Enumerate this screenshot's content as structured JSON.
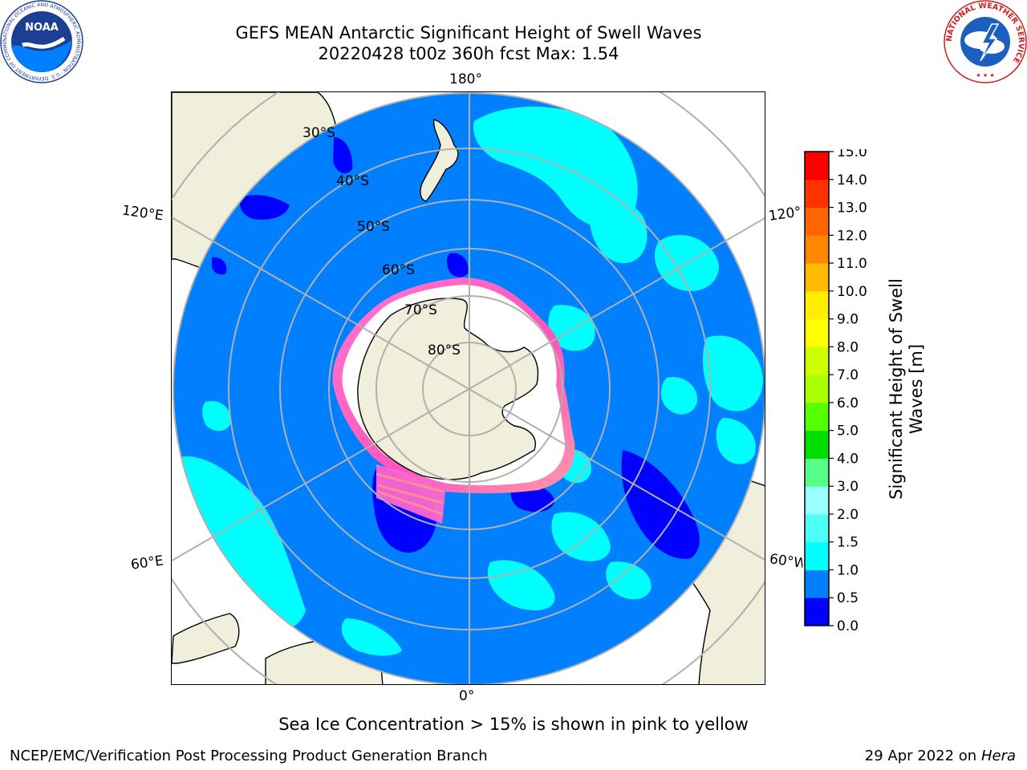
{
  "title_line1": "GEFS MEAN Antarctic Significant Height of Swell Waves",
  "title_line2": "20220428 t00z 360h fcst   Max: 1.54",
  "logos": {
    "noaa": {
      "icon": "noaa-logo",
      "text": "NOAA",
      "ring_text": "NATIONAL OCEANIC AND ATMOSPHERIC ADMINISTRATION · U.S. DEPARTMENT OF COMMERCE"
    },
    "nws": {
      "icon": "national-weather-service-logo",
      "ring_text": "NATIONAL WEATHER SERVICE"
    }
  },
  "map": {
    "projection": "south-polar-stereographic",
    "lon_labels": {
      "top": "180°",
      "bottom": "0°",
      "upper_left": "120°E",
      "upper_right": "120°W",
      "lower_left": "60°E",
      "lower_right": "60°W"
    },
    "lat_labels": [
      "30°S",
      "40°S",
      "50°S",
      "60°S",
      "70°S",
      "80°S"
    ],
    "colors": {
      "ocean": "#0080ff",
      "land": "#efefdc",
      "swell_1_15": "#00ffff",
      "swell_15_2": "#4dfff5",
      "swell_0_05": "#0000ff",
      "sea_ice": "#ff66cc"
    }
  },
  "colorbar": {
    "label_line1": "Significant Height of Swell",
    "label_line2": "Waves [m]",
    "ticks": [
      "0.0",
      "0.5",
      "1.0",
      "1.5",
      "2.0",
      "3.0",
      "4.0",
      "5.0",
      "6.0",
      "7.0",
      "8.0",
      "9.0",
      "10.0",
      "11.0",
      "12.0",
      "13.0",
      "14.0",
      "15.0"
    ],
    "colors": [
      "#0000ff",
      "#0080ff",
      "#00ffff",
      "#4dfff5",
      "#99ffff",
      "#55ff88",
      "#00dd00",
      "#55ff00",
      "#aaff00",
      "#ccff00",
      "#ffff00",
      "#ffee00",
      "#ffbb00",
      "#ff8800",
      "#ff6600",
      "#ff3300",
      "#ff0000"
    ]
  },
  "footnote": "Sea Ice Concentration > 15% is shown in pink to yellow",
  "credit_left": "NCEP/EMC/Verification Post Processing Product Generation Branch",
  "credit_date": "29 Apr 2022 on",
  "credit_host": "Hera"
}
